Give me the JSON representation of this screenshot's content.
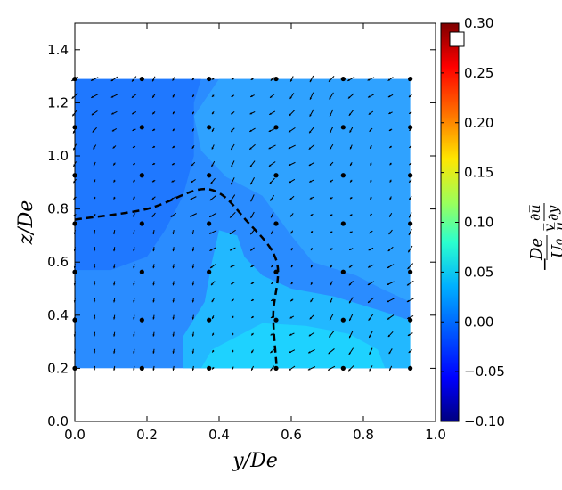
{
  "chart_data": {
    "type": "heatmap",
    "title": "",
    "xlabel": "y/De",
    "ylabel": "z/De",
    "xlim": [
      0.0,
      1.0
    ],
    "ylim": [
      0.0,
      1.5
    ],
    "x_ticks": [
      "0.0",
      "0.2",
      "0.4",
      "0.6",
      "0.8",
      "1.0"
    ],
    "y_ticks": [
      "0.0",
      "0.2",
      "0.4",
      "0.6",
      "0.8",
      "1.0",
      "1.2",
      "1.4"
    ],
    "colorbar": {
      "label": "-De/U0 · v'du/dy (overbar u, overbar v)",
      "range": [
        -0.1,
        0.3
      ],
      "ticks": [
        "−0.10",
        "−0.05",
        "0.00",
        "0.05",
        "0.10",
        "0.15",
        "0.20",
        "0.25",
        "0.30"
      ],
      "colormap": "jet"
    },
    "data_extent": {
      "x": [
        0.0,
        0.93
      ],
      "z": [
        0.2,
        1.29
      ]
    },
    "grid_points": {
      "x": [
        0.0,
        0.186,
        0.372,
        0.558,
        0.744,
        0.93
      ],
      "z": [
        0.2,
        0.382,
        0.563,
        0.745,
        0.927,
        1.108,
        1.29
      ]
    },
    "contour_levels": [
      {
        "level": -0.035,
        "color": "#1f78ff",
        "region": "upper-left"
      },
      {
        "level": -0.02,
        "color": "#2a8cff",
        "region": "background"
      },
      {
        "level": -0.005,
        "color": "#2fa2ff",
        "region": "upper-right"
      },
      {
        "level": 0.005,
        "color": "#22b8ff",
        "region": "lower-right"
      },
      {
        "level": 0.02,
        "color": "#1ed2ff",
        "region": "bottom-center"
      }
    ],
    "dashed_boundary": [
      [
        0.0,
        0.76
      ],
      [
        0.2,
        0.8
      ],
      [
        0.37,
        0.875
      ],
      [
        0.48,
        0.75
      ],
      [
        0.56,
        0.6
      ],
      [
        0.55,
        0.4
      ],
      [
        0.56,
        0.2
      ]
    ]
  }
}
